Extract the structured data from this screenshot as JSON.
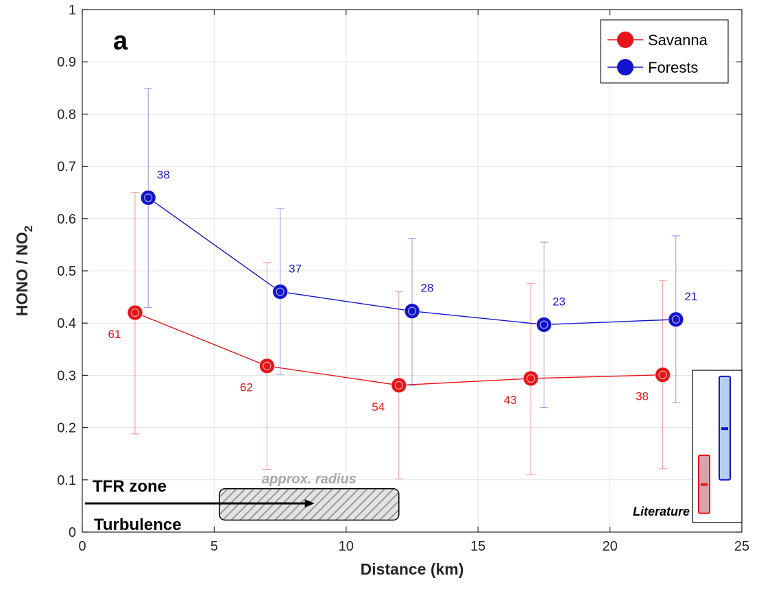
{
  "chart_data": {
    "type": "line",
    "panel_label": "a",
    "xlabel": "Distance (km)",
    "ylabel": "HONO / NO",
    "ylabel_subscript": "2",
    "xlim": [
      0,
      25
    ],
    "ylim": [
      0,
      1
    ],
    "xticks": [
      0,
      5,
      10,
      15,
      20,
      25
    ],
    "yticks": [
      0,
      0.1,
      0.2,
      0.3,
      0.4,
      0.5,
      0.6,
      0.7,
      0.8,
      0.9,
      1
    ],
    "grid": true,
    "legend_position": "top-right",
    "series": [
      {
        "name": "Savanna",
        "color": "#e8141a",
        "x": [
          2,
          7,
          12,
          17,
          22
        ],
        "y": [
          0.42,
          0.318,
          0.281,
          0.294,
          0.301
        ],
        "err_low": [
          0.188,
          0.12,
          0.102,
          0.11,
          0.121
        ],
        "err_high": [
          0.65,
          0.516,
          0.46,
          0.476,
          0.481
        ],
        "counts": [
          "61",
          "62",
          "54",
          "43",
          "38"
        ]
      },
      {
        "name": "Forests",
        "color": "#1414cc",
        "x": [
          2.5,
          7.5,
          12.5,
          17.5,
          22.5
        ],
        "y": [
          0.64,
          0.46,
          0.423,
          0.397,
          0.407
        ],
        "err_low": [
          0.43,
          0.302,
          0.281,
          0.238,
          0.248
        ],
        "err_high": [
          0.849,
          0.619,
          0.562,
          0.555,
          0.567
        ],
        "counts": [
          "38",
          "37",
          "28",
          "23",
          "21"
        ]
      }
    ],
    "annotations": {
      "tfr_zone": "TFR zone",
      "turbulence": "Turbulence",
      "radius_label": "approx. radius",
      "radius_box_x": [
        5.2,
        12
      ],
      "radius_box_y": [
        0.023,
        0.083
      ],
      "arrow_y": 0.055,
      "arrow_x": [
        0.1,
        8.8
      ],
      "literature_label": "Literature",
      "literature": [
        {
          "color": "#e8141a",
          "fill": "#d9a3b0",
          "range": [
            0.036,
            0.147
          ],
          "mean": 0.091
        },
        {
          "color": "#1414cc",
          "fill": "#b6cdee",
          "range": [
            0.1,
            0.298
          ],
          "mean": 0.198
        }
      ]
    }
  }
}
